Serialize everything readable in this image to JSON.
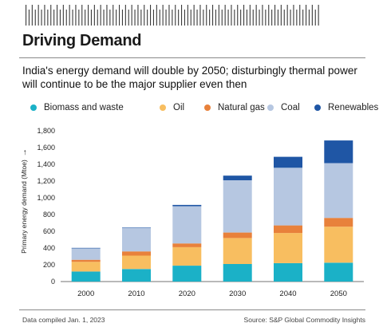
{
  "header": {
    "title": "Driving Demand",
    "subtitle": "India's energy demand will double by 2050; disturbingly thermal power will continue to be the major supplier even then"
  },
  "footer": {
    "note": "Data compiled Jan. 1, 2023",
    "source": "Source: S&P Global Commodity Insights"
  },
  "chart_data": {
    "type": "bar",
    "stacked": true,
    "title": "",
    "xlabel": "",
    "ylabel": "Primary energy demand (Mtoe)",
    "ylabel_arrow": "→",
    "ylim": [
      0,
      1800
    ],
    "yticks": [
      0,
      200,
      400,
      600,
      800,
      1000,
      1200,
      1400,
      1600,
      1800
    ],
    "ytick_labels": [
      "0",
      "200",
      "400",
      "600",
      "800",
      "1,000",
      "1,200",
      "1,400",
      "1,600",
      "1,800"
    ],
    "grid": false,
    "legend_position": "top",
    "categories": [
      "2000",
      "2010",
      "2020",
      "2030",
      "2040",
      "2050"
    ],
    "series": [
      {
        "name": "Biomass and waste",
        "color": "#1bb1c7",
        "values": [
          120,
          150,
          190,
          210,
          220,
          225
        ]
      },
      {
        "name": "Oil",
        "color": "#f8be60",
        "values": [
          115,
          160,
          220,
          310,
          360,
          430
        ]
      },
      {
        "name": "Natural gas",
        "color": "#e8813b",
        "values": [
          25,
          50,
          45,
          65,
          90,
          105
        ]
      },
      {
        "name": "Coal",
        "color": "#b6c7e1",
        "values": [
          140,
          280,
          445,
          625,
          690,
          655
        ]
      },
      {
        "name": "Renewables",
        "color": "#1f56a5",
        "values": [
          2,
          5,
          15,
          55,
          130,
          270
        ]
      }
    ]
  }
}
